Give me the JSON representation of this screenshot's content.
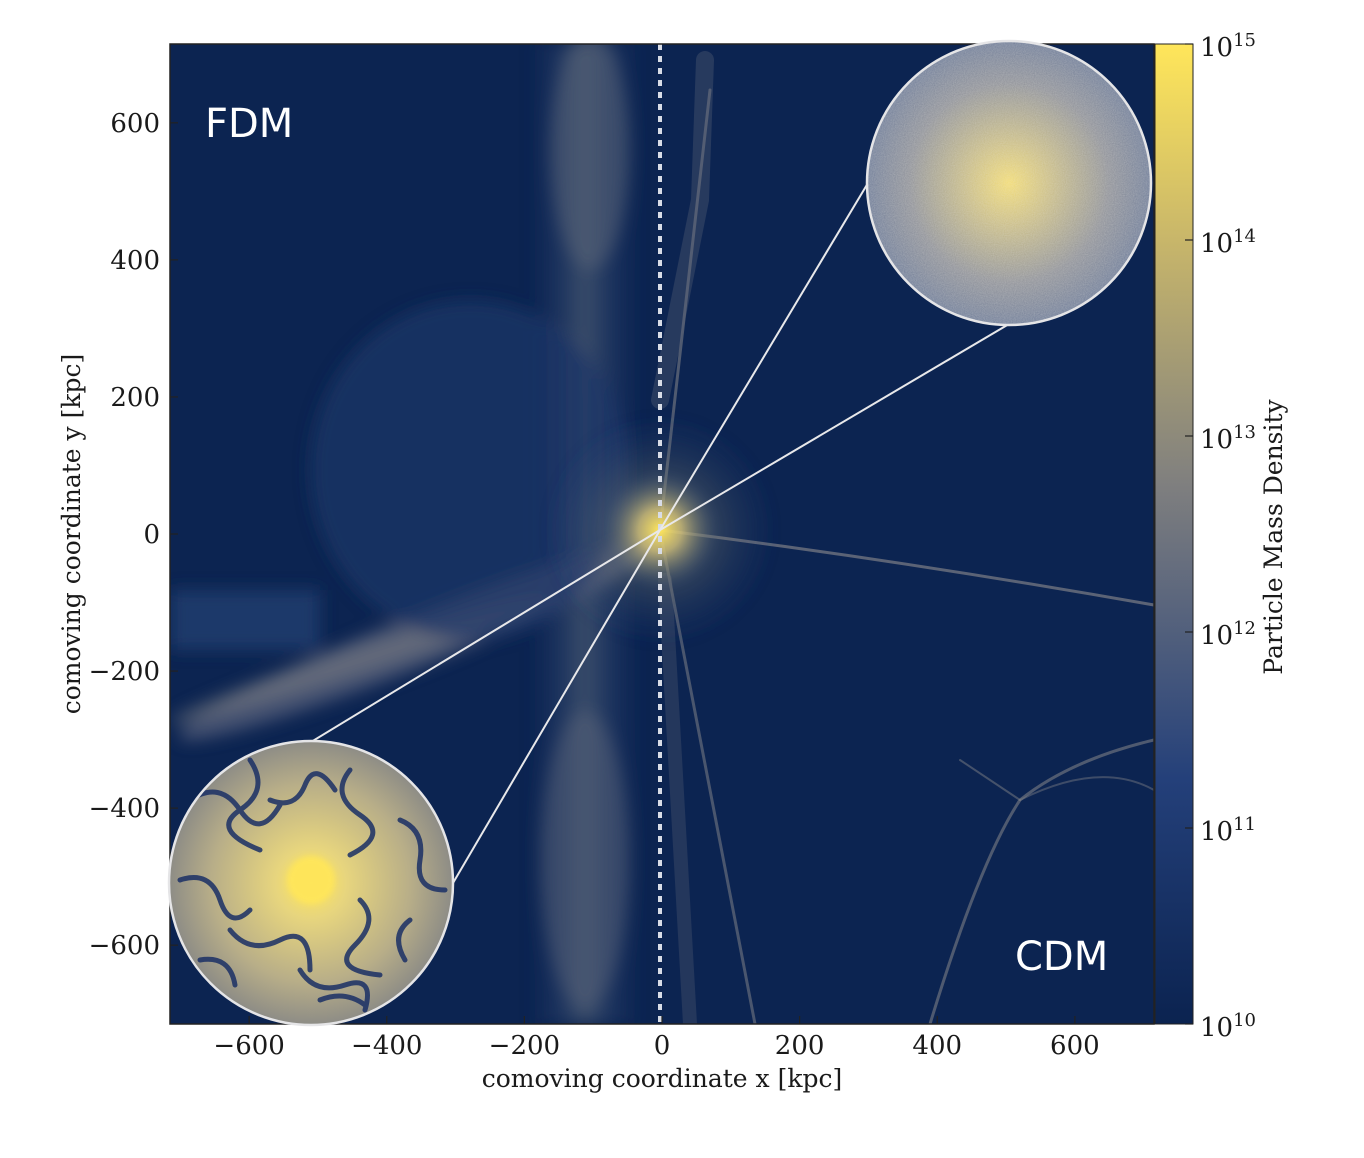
{
  "chart_data": {
    "type": "heatmap",
    "xlabel": "comoving coordinate x [kpc]",
    "ylabel": "comoving coordinate y [kpc]",
    "x_ticks": [
      -600,
      -400,
      -200,
      0,
      200,
      400,
      600
    ],
    "y_ticks": [
      600,
      400,
      200,
      0,
      -200,
      -400,
      -600
    ],
    "x_tick_labels": [
      "−600",
      "−400",
      "−200",
      "0",
      "200",
      "400",
      "600"
    ],
    "y_tick_labels": [
      "600",
      "400",
      "200",
      "0",
      "−200",
      "−400",
      "−600"
    ],
    "xlim": [
      -715,
      715
    ],
    "ylim": [
      -715,
      715
    ],
    "colorbar": {
      "label": "Particle Mass Density",
      "scale": "log",
      "range": [
        10000000000.0,
        1000000000000000.0
      ],
      "tick_labels": [
        {
          "base": "10",
          "exp": "15"
        },
        {
          "base": "10",
          "exp": "14"
        },
        {
          "base": "10",
          "exp": "13"
        },
        {
          "base": "10",
          "exp": "12"
        },
        {
          "base": "10",
          "exp": "11"
        },
        {
          "base": "10",
          "exp": "10"
        }
      ],
      "colors": [
        "#0b2350",
        "#24407a",
        "#7f7f7f",
        "#c8b66a",
        "#ffe65a"
      ]
    },
    "panels": [
      {
        "label": "FDM",
        "side": "left",
        "x_range": [
          -715,
          0
        ]
      },
      {
        "label": "CDM",
        "side": "right",
        "x_range": [
          0,
          715
        ]
      }
    ],
    "insets": [
      {
        "panel": "FDM",
        "center": [
          -510,
          -505
        ],
        "zoom_target": [
          0,
          0
        ]
      },
      {
        "panel": "CDM",
        "center": [
          510,
          510
        ],
        "zoom_target": [
          0,
          0
        ]
      }
    ],
    "divider_x": 0
  }
}
